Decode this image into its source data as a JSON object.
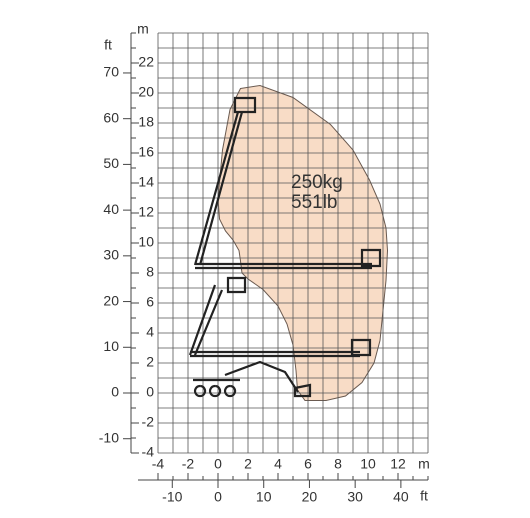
{
  "chart_data": {
    "type": "area",
    "x_unit": "m",
    "y_unit": "m",
    "x2_unit": "ft",
    "y2_unit": "ft",
    "annotations": [
      "250kg",
      "551lb"
    ],
    "series": [
      {
        "color": "#f8dcc6",
        "x": [
          1.5,
          2.8,
          5.0,
          7.5,
          9.0,
          10.1,
          10.8,
          11.2,
          11.3,
          11.2,
          11.0,
          10.8,
          10.4,
          9.6,
          8.5,
          7.2,
          5.8,
          5.3,
          5.2,
          5.0,
          4.6,
          4.0,
          3.0,
          2.0,
          1.6,
          1.5,
          1.4,
          1.0,
          0.5,
          0.1,
          0.0,
          0.3,
          0.8,
          1.5
        ],
        "y": [
          20.3,
          20.5,
          19.7,
          17.9,
          16.2,
          14.2,
          12.6,
          11.0,
          9.5,
          7.5,
          5.5,
          3.5,
          2.0,
          0.7,
          -0.2,
          -0.5,
          -0.5,
          0.2,
          1.5,
          3.2,
          4.6,
          5.8,
          6.9,
          7.6,
          8.0,
          8.8,
          9.5,
          10.2,
          10.8,
          11.6,
          13.0,
          16.2,
          18.9,
          20.3
        ]
      }
    ],
    "xlim": [
      -4,
      14
    ],
    "xticks": [
      -4,
      -2,
      0,
      2,
      4,
      6,
      8,
      10,
      12
    ],
    "x_minor_ticks": [
      -3,
      -1,
      1,
      3,
      5,
      7,
      9,
      11,
      13,
      14
    ],
    "ylim": [
      -4,
      24
    ],
    "yticks": [
      -4,
      -2,
      0,
      2,
      4,
      6,
      8,
      10,
      12,
      14,
      16,
      18,
      20,
      22
    ],
    "y_minor_ticks": [
      -3,
      -1,
      1,
      3,
      5,
      7,
      9,
      11,
      13,
      15,
      17,
      19,
      21,
      23,
      24
    ],
    "x2lim": [
      -13.123,
      45.932
    ],
    "x2ticks": [
      -10,
      0,
      10,
      20,
      30,
      40
    ],
    "y2lim": [
      -13.123,
      78.74
    ],
    "y2ticks": [
      -10,
      0,
      10,
      20,
      30,
      40,
      50,
      60,
      70
    ],
    "grid": true
  }
}
